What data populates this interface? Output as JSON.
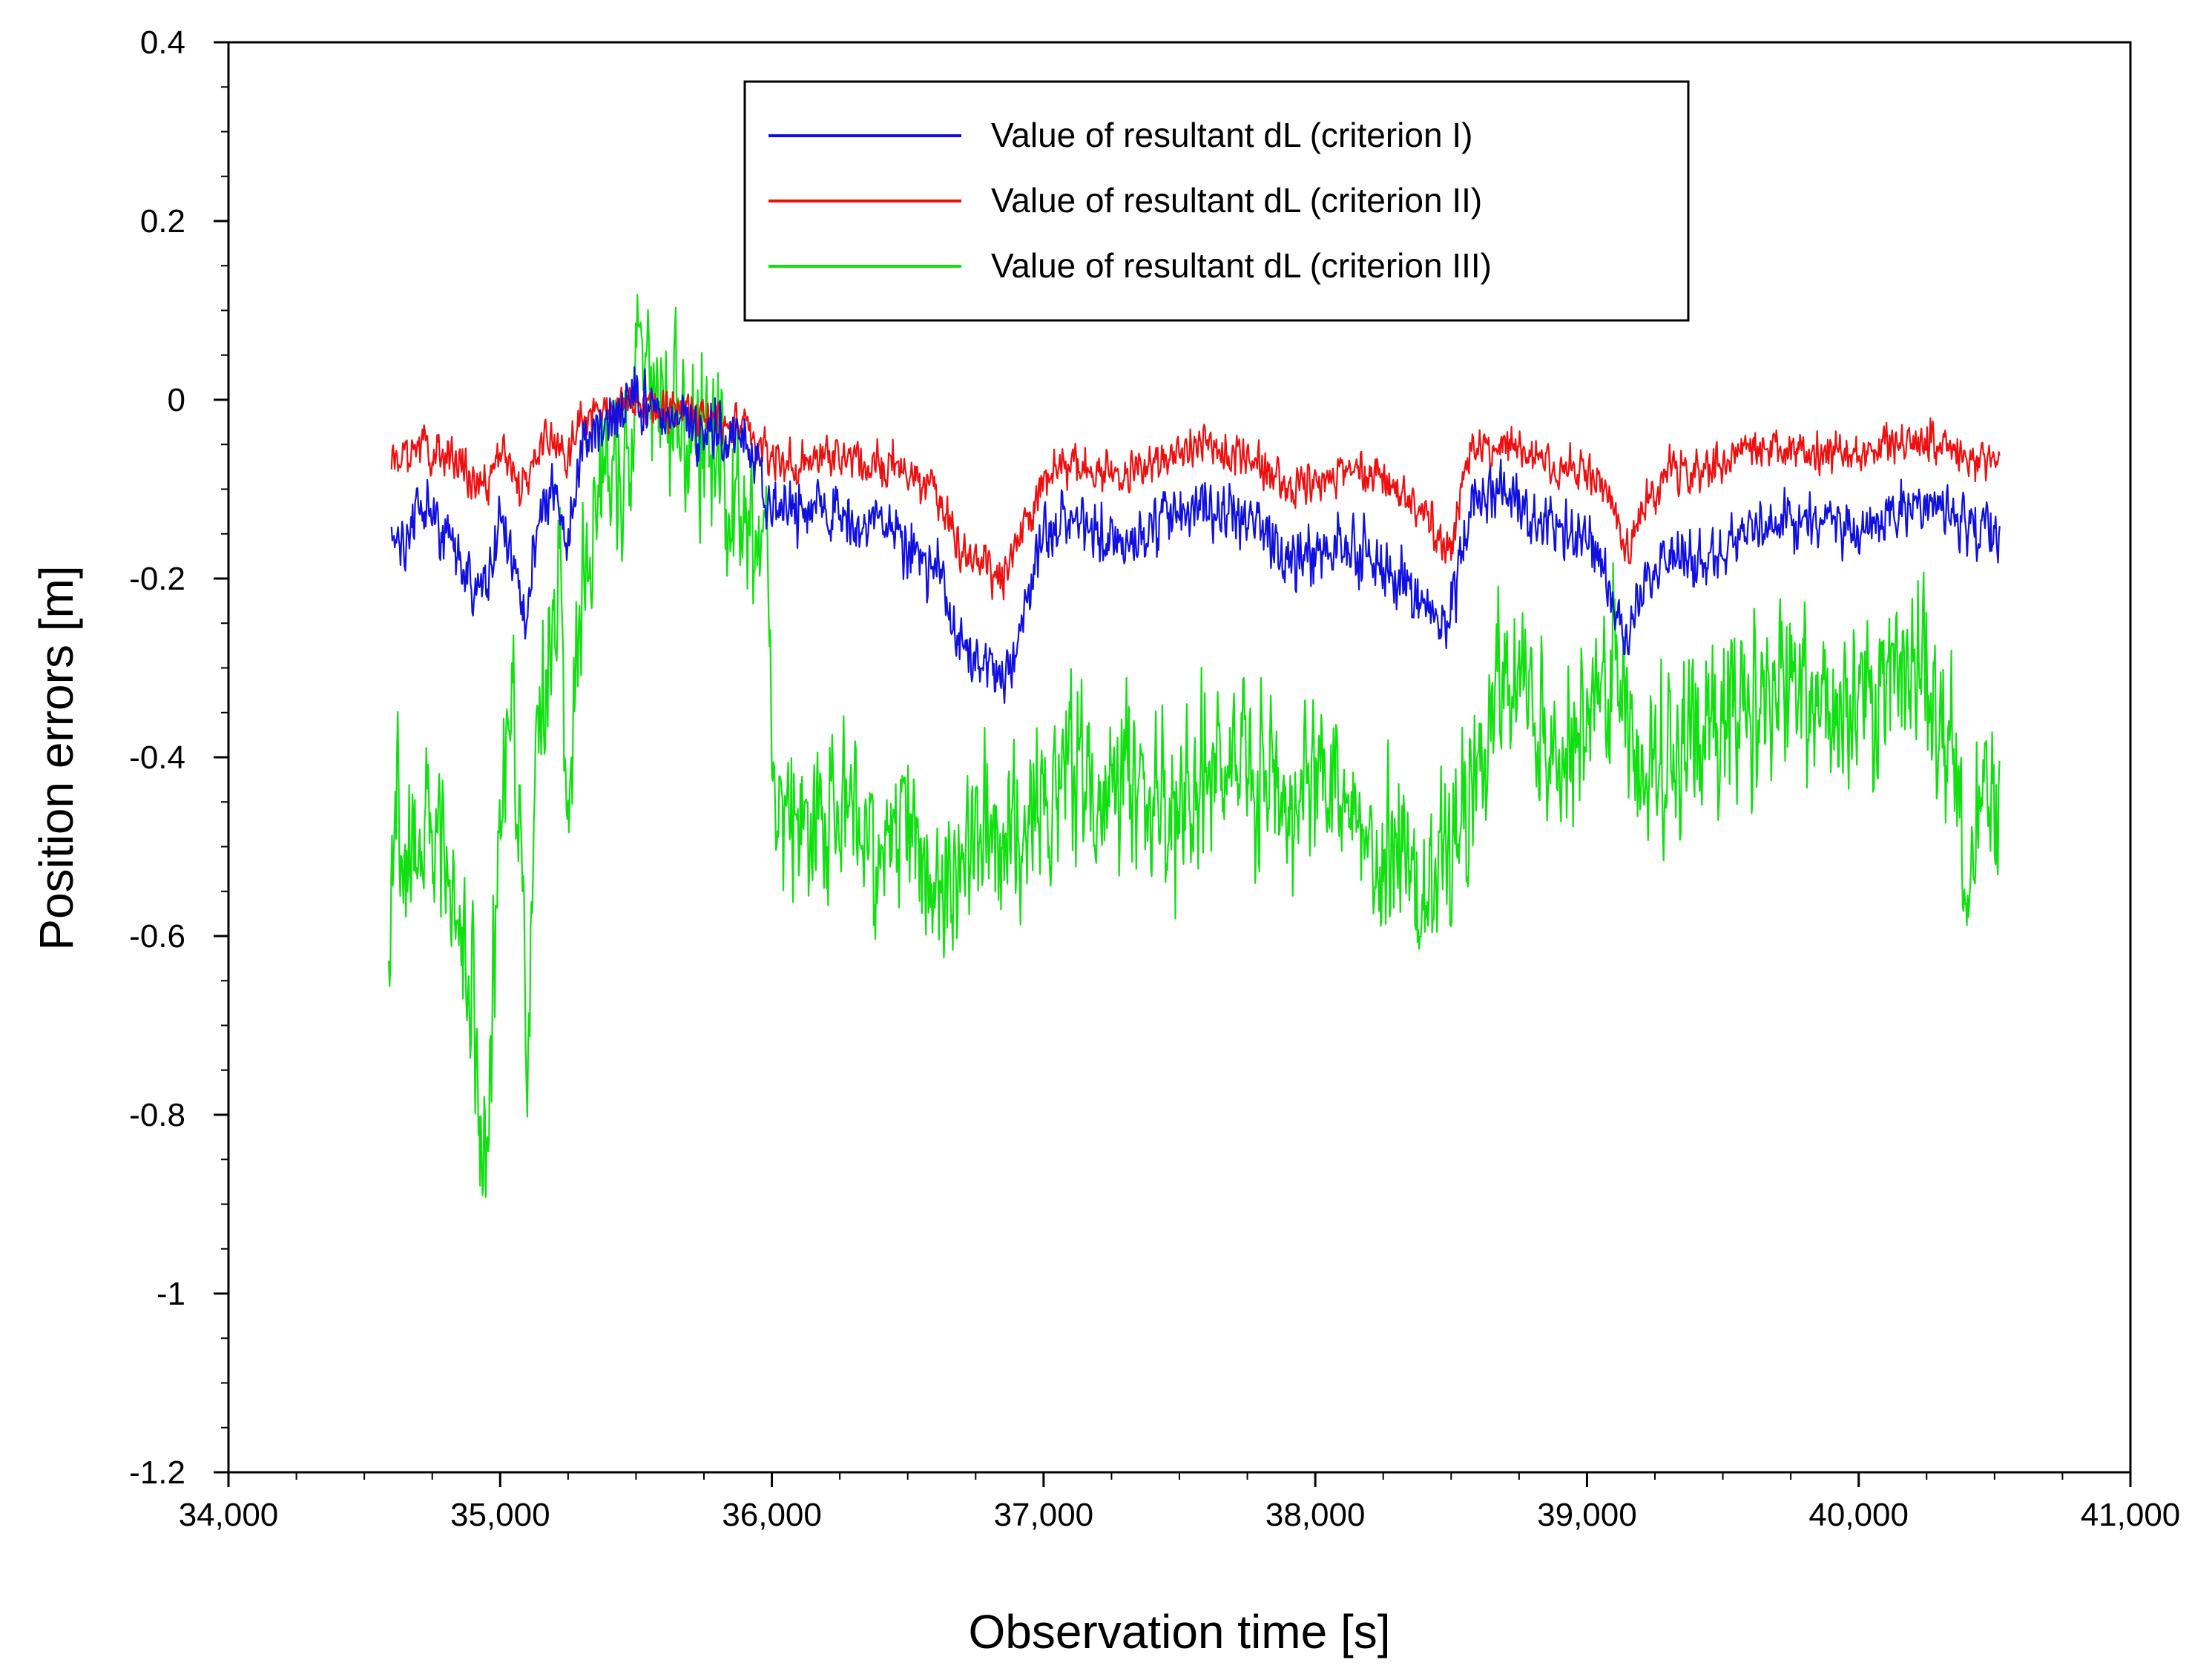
{
  "chart_data": {
    "type": "line",
    "title": "",
    "xlabel": "Observation time [s]",
    "ylabel": "Position errors [m]",
    "xlim": [
      34000,
      41000
    ],
    "ylim": [
      -1.2,
      0.4
    ],
    "x_ticks": [
      34000,
      35000,
      36000,
      37000,
      38000,
      39000,
      40000,
      41000
    ],
    "x_tick_labels": [
      "34,000",
      "35,000",
      "36,000",
      "37,000",
      "38,000",
      "39,000",
      "40,000",
      "41,000"
    ],
    "y_ticks": [
      0.4,
      0.2,
      0,
      -0.2,
      -0.4,
      -0.6,
      -0.8,
      -1,
      -1.2
    ],
    "y_tick_labels": [
      "0.4",
      "0.2",
      "0",
      "-0.2",
      "-0.4",
      "-0.6",
      "-0.8",
      "-1",
      "-1.2"
    ],
    "x_minor_step": 250,
    "y_minor_step": 0.05,
    "grid": false,
    "legend_position": "top-center",
    "series": [
      {
        "name": "Value of resultant dL (criterion I)",
        "color": "#1010e0",
        "noise": 0.035,
        "x": [
          34600,
          34650,
          34700,
          34750,
          34800,
          34850,
          34900,
          34950,
          35000,
          35050,
          35100,
          35150,
          35200,
          35250,
          35300,
          35400,
          35500,
          35600,
          35700,
          35800,
          35900,
          36000,
          36100,
          36200,
          36300,
          36400,
          36500,
          36600,
          36700,
          36800,
          36850,
          36900,
          37000,
          37100,
          37200,
          37300,
          37400,
          37500,
          37600,
          37700,
          37800,
          37900,
          38000,
          38100,
          38200,
          38300,
          38400,
          38450,
          38500,
          38550,
          38600,
          38700,
          38800,
          38900,
          39000,
          39100,
          39150,
          39200,
          39300,
          39400,
          39500,
          39600,
          39700,
          39800,
          39900,
          40000,
          40100,
          40200,
          40300,
          40400,
          40520
        ],
        "values": [
          -0.13,
          -0.17,
          -0.12,
          -0.13,
          -0.14,
          -0.18,
          -0.22,
          -0.2,
          -0.13,
          -0.18,
          -0.24,
          -0.12,
          -0.1,
          -0.16,
          -0.05,
          -0.02,
          0.0,
          -0.02,
          -0.03,
          -0.04,
          -0.05,
          -0.12,
          -0.13,
          -0.12,
          -0.14,
          -0.13,
          -0.17,
          -0.19,
          -0.27,
          -0.3,
          -0.31,
          -0.28,
          -0.16,
          -0.13,
          -0.15,
          -0.16,
          -0.14,
          -0.13,
          -0.12,
          -0.13,
          -0.14,
          -0.19,
          -0.17,
          -0.17,
          -0.17,
          -0.2,
          -0.24,
          -0.26,
          -0.24,
          -0.15,
          -0.12,
          -0.1,
          -0.13,
          -0.15,
          -0.15,
          -0.23,
          -0.27,
          -0.22,
          -0.17,
          -0.19,
          -0.17,
          -0.14,
          -0.13,
          -0.15,
          -0.14,
          -0.15,
          -0.13,
          -0.12,
          -0.11,
          -0.15,
          -0.15
        ]
      },
      {
        "name": "Value of resultant dL (criterion II)",
        "color": "#ee1010",
        "noise": 0.025,
        "x": [
          34600,
          34650,
          34700,
          34750,
          34800,
          34850,
          34900,
          34950,
          35000,
          35050,
          35100,
          35150,
          35200,
          35250,
          35300,
          35400,
          35500,
          35600,
          35700,
          35800,
          35900,
          36000,
          36100,
          36200,
          36300,
          36400,
          36500,
          36600,
          36700,
          36800,
          36850,
          36900,
          37000,
          37100,
          37200,
          37300,
          37400,
          37500,
          37600,
          37700,
          37800,
          37900,
          38000,
          38100,
          38200,
          38300,
          38400,
          38450,
          38500,
          38550,
          38600,
          38700,
          38800,
          38900,
          39000,
          39100,
          39150,
          39200,
          39300,
          39400,
          39500,
          39600,
          39700,
          39800,
          39900,
          40000,
          40100,
          40200,
          40300,
          40400,
          40520
        ],
        "values": [
          -0.06,
          -0.07,
          -0.05,
          -0.06,
          -0.06,
          -0.07,
          -0.09,
          -0.1,
          -0.05,
          -0.08,
          -0.1,
          -0.05,
          -0.04,
          -0.07,
          -0.02,
          -0.01,
          0.0,
          -0.01,
          -0.02,
          -0.02,
          -0.03,
          -0.07,
          -0.07,
          -0.06,
          -0.07,
          -0.07,
          -0.08,
          -0.1,
          -0.17,
          -0.19,
          -0.2,
          -0.16,
          -0.09,
          -0.07,
          -0.08,
          -0.08,
          -0.07,
          -0.06,
          -0.05,
          -0.06,
          -0.07,
          -0.1,
          -0.09,
          -0.08,
          -0.08,
          -0.1,
          -0.13,
          -0.15,
          -0.17,
          -0.07,
          -0.05,
          -0.05,
          -0.06,
          -0.08,
          -0.08,
          -0.12,
          -0.17,
          -0.12,
          -0.08,
          -0.08,
          -0.07,
          -0.06,
          -0.05,
          -0.06,
          -0.06,
          -0.06,
          -0.05,
          -0.05,
          -0.05,
          -0.07,
          -0.07
        ]
      },
      {
        "name": "Value of resultant dL (criterion III)",
        "color": "#10e010",
        "noise": 0.1,
        "x": [
          34590,
          34620,
          34660,
          34700,
          34740,
          34780,
          34820,
          34860,
          34900,
          34930,
          34960,
          35000,
          35040,
          35080,
          35100,
          35140,
          35180,
          35220,
          35250,
          35280,
          35320,
          35360,
          35400,
          35440,
          35480,
          35520,
          35550,
          35600,
          35650,
          35700,
          35750,
          35800,
          35850,
          35900,
          35950,
          35990,
          36010,
          36100,
          36200,
          36300,
          36400,
          36500,
          36600,
          36700,
          36800,
          36900,
          37000,
          37100,
          37200,
          37300,
          37400,
          37500,
          37600,
          37700,
          37800,
          37900,
          38000,
          38100,
          38200,
          38300,
          38400,
          38500,
          38600,
          38700,
          38800,
          38900,
          39000,
          39100,
          39200,
          39300,
          39400,
          39500,
          39600,
          39700,
          39800,
          39900,
          40000,
          40100,
          40200,
          40300,
          40350,
          40400,
          40450,
          40520
        ],
        "values": [
          -0.6,
          -0.45,
          -0.55,
          -0.5,
          -0.45,
          -0.5,
          -0.55,
          -0.6,
          -0.65,
          -0.85,
          -0.75,
          -0.5,
          -0.3,
          -0.5,
          -0.7,
          -0.35,
          -0.3,
          -0.2,
          -0.45,
          -0.3,
          -0.15,
          -0.1,
          -0.05,
          -0.1,
          -0.05,
          0.05,
          0.05,
          0.0,
          -0.02,
          -0.03,
          -0.05,
          -0.05,
          -0.1,
          -0.15,
          -0.12,
          -0.2,
          -0.45,
          -0.5,
          -0.48,
          -0.45,
          -0.5,
          -0.47,
          -0.55,
          -0.5,
          -0.48,
          -0.5,
          -0.45,
          -0.4,
          -0.45,
          -0.42,
          -0.47,
          -0.45,
          -0.4,
          -0.38,
          -0.43,
          -0.45,
          -0.42,
          -0.45,
          -0.47,
          -0.5,
          -0.55,
          -0.5,
          -0.4,
          -0.3,
          -0.35,
          -0.4,
          -0.35,
          -0.3,
          -0.42,
          -0.4,
          -0.38,
          -0.35,
          -0.33,
          -0.3,
          -0.32,
          -0.35,
          -0.35,
          -0.33,
          -0.3,
          -0.35,
          -0.4,
          -0.55,
          -0.45,
          -0.45
        ]
      }
    ]
  }
}
